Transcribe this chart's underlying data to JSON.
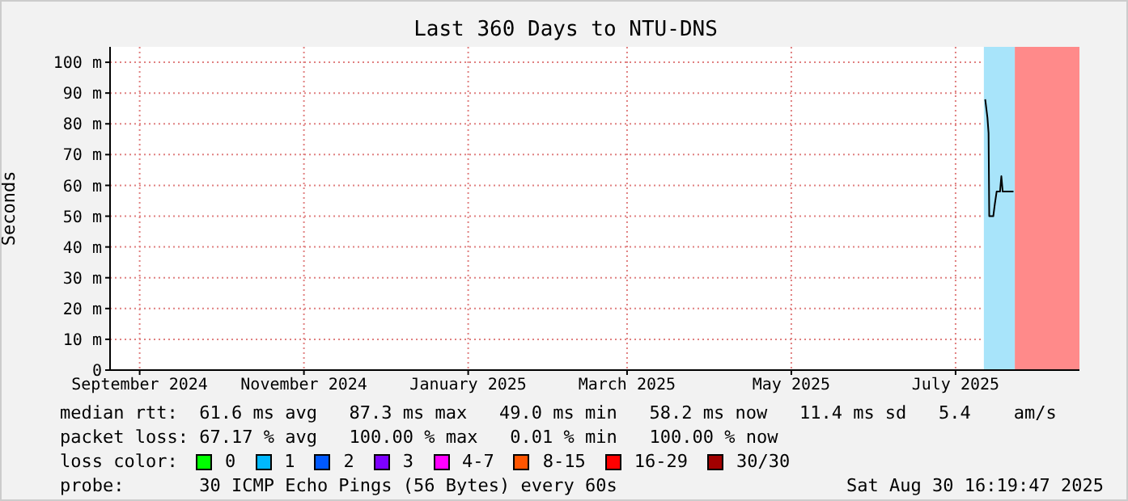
{
  "chart_data": {
    "type": "line",
    "title": "Last 360 Days to NTU-DNS",
    "ylabel": "Seconds",
    "x": [
      "2025-07-26T00:00",
      "2025-07-26T20:00",
      "2025-07-27T06:00",
      "2025-07-27T12:00",
      "2025-07-29T00:00",
      "2025-07-29T14:00",
      "2025-07-30T06:00",
      "2025-07-31T12:00",
      "2025-08-01T00:00",
      "2025-08-01T12:00",
      "2025-08-04T00:00",
      "2025-08-05T12:00"
    ],
    "series": [
      {
        "color": "#000000",
        "values": [
          88,
          82,
          77,
          50,
          50,
          54,
          58,
          58,
          63,
          58,
          58,
          58
        ]
      }
    ],
    "xlim": [
      "2024-09-04",
      "2025-08-30"
    ],
    "xticks": [
      {
        "value": "2024-09-15",
        "label": "September 2024"
      },
      {
        "value": "2024-11-15",
        "label": "November 2024"
      },
      {
        "value": "2025-01-15",
        "label": "January 2025"
      },
      {
        "value": "2025-03-15",
        "label": "March 2025"
      },
      {
        "value": "2025-05-15",
        "label": "May 2025"
      },
      {
        "value": "2025-07-15",
        "label": "July 2025"
      }
    ],
    "ylim": [
      0,
      105
    ],
    "yticks": [
      {
        "value": 0,
        "label": "0"
      },
      {
        "value": 10,
        "label": "10 m"
      },
      {
        "value": 20,
        "label": "20 m"
      },
      {
        "value": 30,
        "label": "30 m"
      },
      {
        "value": 40,
        "label": "40 m"
      },
      {
        "value": 50,
        "label": "50 m"
      },
      {
        "value": 60,
        "label": "60 m"
      },
      {
        "value": 70,
        "label": "70 m"
      },
      {
        "value": 80,
        "label": "80 m"
      },
      {
        "value": 90,
        "label": "90 m"
      },
      {
        "value": 100,
        "label": "100 m"
      }
    ],
    "bands": [
      {
        "axis": "x",
        "from": "2025-07-25T12:00",
        "to": "2025-08-06T00:00",
        "color": "#a8e4fa"
      },
      {
        "axis": "x",
        "from": "2025-08-06T00:00",
        "to": "2025-08-30T00:00",
        "color": "#ff8a8a"
      }
    ],
    "grid": true,
    "legend": false,
    "marker": "none",
    "line_style": "solid",
    "annotations": [
      "median rtt:  61.6 ms avg   87.3 ms max   49.0 ms min   58.2 ms now   11.4 ms sd   5.4    am/s",
      "packet loss: 67.17 % avg   100.00 % max   0.01 % min   100.00 % now",
      "loss color:",
      "0",
      "1",
      "2",
      "3",
      "4-7",
      "8-15",
      "16-29",
      "30/30",
      "probe:       30 ICMP Echo Pings (56 Bytes) every 60s",
      "Sat Aug 30 16:19:47 2025"
    ]
  }
}
